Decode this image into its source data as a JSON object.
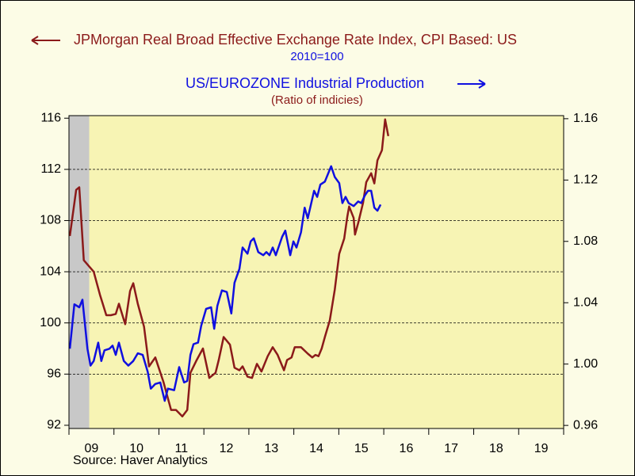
{
  "chart_data": {
    "type": "line",
    "xlim": [
      2009,
      2020
    ],
    "xticks": [
      2009,
      2010,
      2011,
      2012,
      2013,
      2014,
      2015,
      2016,
      2017,
      2018,
      2019,
      2020
    ],
    "xlabels": [
      {
        "value": 2009.5,
        "label": "09"
      },
      {
        "value": 2010.5,
        "label": "10"
      },
      {
        "value": 2011.5,
        "label": "11"
      },
      {
        "value": 2012.5,
        "label": "12"
      },
      {
        "value": 2013.5,
        "label": "13"
      },
      {
        "value": 2014.5,
        "label": "14"
      },
      {
        "value": 2015.5,
        "label": "15"
      },
      {
        "value": 2016.5,
        "label": "16"
      },
      {
        "value": 2017.5,
        "label": "17"
      },
      {
        "value": 2018.5,
        "label": "18"
      },
      {
        "value": 2019.5,
        "label": "19"
      }
    ],
    "ylim": [
      91.75,
      116.2
    ],
    "yticks": [
      92,
      96,
      100,
      104,
      108,
      112,
      116
    ],
    "y2lim": [
      0.958,
      1.162
    ],
    "y2ticks": [
      0.96,
      {
        "value": 1,
        "label": "1.00"
      },
      1.04,
      1.08,
      1.12,
      1.16
    ],
    "grid": true,
    "shaded": [
      2009,
      2009.45
    ],
    "source": "Source: Haver Analytics",
    "series": [
      {
        "name": "JPMorgan Real Broad Effective Exchange Rate Index, CPI Based: US",
        "units": "2010=100",
        "color": "#8b1a1a",
        "axis": "y",
        "x": [
          2009.02,
          2009.16,
          2009.23,
          2009.33,
          2009.55,
          2009.69,
          2009.83,
          2009.93,
          2010.04,
          2010.11,
          2010.25,
          2010.36,
          2010.43,
          2010.53,
          2010.67,
          2010.78,
          2010.92,
          2011.1,
          2011.27,
          2011.38,
          2011.52,
          2011.63,
          2011.7,
          2011.84,
          2011.98,
          2012.12,
          2012.26,
          2012.33,
          2012.44,
          2012.58,
          2012.68,
          2012.79,
          2012.86,
          2012.97,
          2013.07,
          2013.18,
          2013.28,
          2013.42,
          2013.53,
          2013.64,
          2013.78,
          2013.85,
          2013.95,
          2014.02,
          2014.16,
          2014.31,
          2014.41,
          2014.48,
          2014.55,
          2014.62,
          2014.69,
          2014.8,
          2014.91,
          2015.01,
          2015.12,
          2015.19,
          2015.23,
          2015.33,
          2015.36,
          2015.43,
          2015.54,
          2015.61,
          2015.72,
          2015.79,
          2015.86,
          2015.96,
          2016.03,
          2016.1
        ],
        "values": [
          106.8,
          110.4,
          110.6,
          104.9,
          104.0,
          102.2,
          100.6,
          100.6,
          100.7,
          101.5,
          99.9,
          102.5,
          103.1,
          101.5,
          99.7,
          96.6,
          97.3,
          95.4,
          93.2,
          93.2,
          92.7,
          93.2,
          96.1,
          97.1,
          98.0,
          95.7,
          96.1,
          97.1,
          98.9,
          98.3,
          96.5,
          96.3,
          96.6,
          95.8,
          95.7,
          96.8,
          96.2,
          97.4,
          98.1,
          97.5,
          96.3,
          97.1,
          97.3,
          98.1,
          98.1,
          97.6,
          97.3,
          97.5,
          97.4,
          98.0,
          98.9,
          100.2,
          102.6,
          105.4,
          106.6,
          108.3,
          109.1,
          108.2,
          106.9,
          107.8,
          109.4,
          111.0,
          111.7,
          110.9,
          112.7,
          113.5,
          115.9,
          114.6
        ]
      },
      {
        "name": "US/EUROZONE  Industrial Production",
        "units": "(Ratio of indicies)",
        "color": "#1010e0",
        "axis": "y2",
        "x": [
          2009.02,
          2009.12,
          2009.23,
          2009.3,
          2009.41,
          2009.48,
          2009.55,
          2009.65,
          2009.72,
          2009.79,
          2009.9,
          2009.97,
          2010.04,
          2010.11,
          2010.22,
          2010.32,
          2010.43,
          2010.53,
          2010.64,
          2010.75,
          2010.82,
          2010.92,
          2011.03,
          2011.13,
          2011.2,
          2011.34,
          2011.45,
          2011.56,
          2011.63,
          2011.7,
          2011.77,
          2011.87,
          2011.94,
          2012.05,
          2012.16,
          2012.23,
          2012.3,
          2012.4,
          2012.51,
          2012.61,
          2012.68,
          2012.79,
          2012.86,
          2012.97,
          2013.04,
          2013.11,
          2013.21,
          2013.32,
          2013.39,
          2013.46,
          2013.53,
          2013.6,
          2013.67,
          2013.74,
          2013.81,
          2013.92,
          2013.99,
          2014.06,
          2014.16,
          2014.24,
          2014.31,
          2014.38,
          2014.45,
          2014.52,
          2014.59,
          2014.69,
          2014.83,
          2014.91,
          2015.01,
          2015.08,
          2015.15,
          2015.22,
          2015.33,
          2015.43,
          2015.5,
          2015.58,
          2015.65,
          2015.72,
          2015.79,
          2015.86,
          2015.93
        ],
        "values": [
          1.01,
          1.039,
          1.037,
          1.042,
          1.01,
          0.999,
          1.002,
          1.014,
          1.002,
          1.009,
          1.01,
          1.012,
          1.006,
          1.014,
          1.002,
          0.999,
          1.002,
          1.007,
          1.006,
          0.995,
          0.984,
          0.987,
          0.988,
          0.976,
          0.984,
          0.983,
          0.998,
          0.988,
          0.989,
          1.006,
          1.013,
          1.014,
          1.025,
          1.036,
          1.037,
          1.023,
          1.038,
          1.048,
          1.047,
          1.033,
          1.053,
          1.062,
          1.076,
          1.072,
          1.08,
          1.082,
          1.073,
          1.071,
          1.073,
          1.071,
          1.076,
          1.071,
          1.077,
          1.083,
          1.087,
          1.071,
          1.08,
          1.076,
          1.086,
          1.102,
          1.095,
          1.104,
          1.113,
          1.109,
          1.117,
          1.119,
          1.129,
          1.122,
          1.118,
          1.105,
          1.109,
          1.105,
          1.103,
          1.106,
          1.105,
          1.11,
          1.113,
          1.113,
          1.102,
          1.1,
          1.104
        ]
      }
    ]
  }
}
